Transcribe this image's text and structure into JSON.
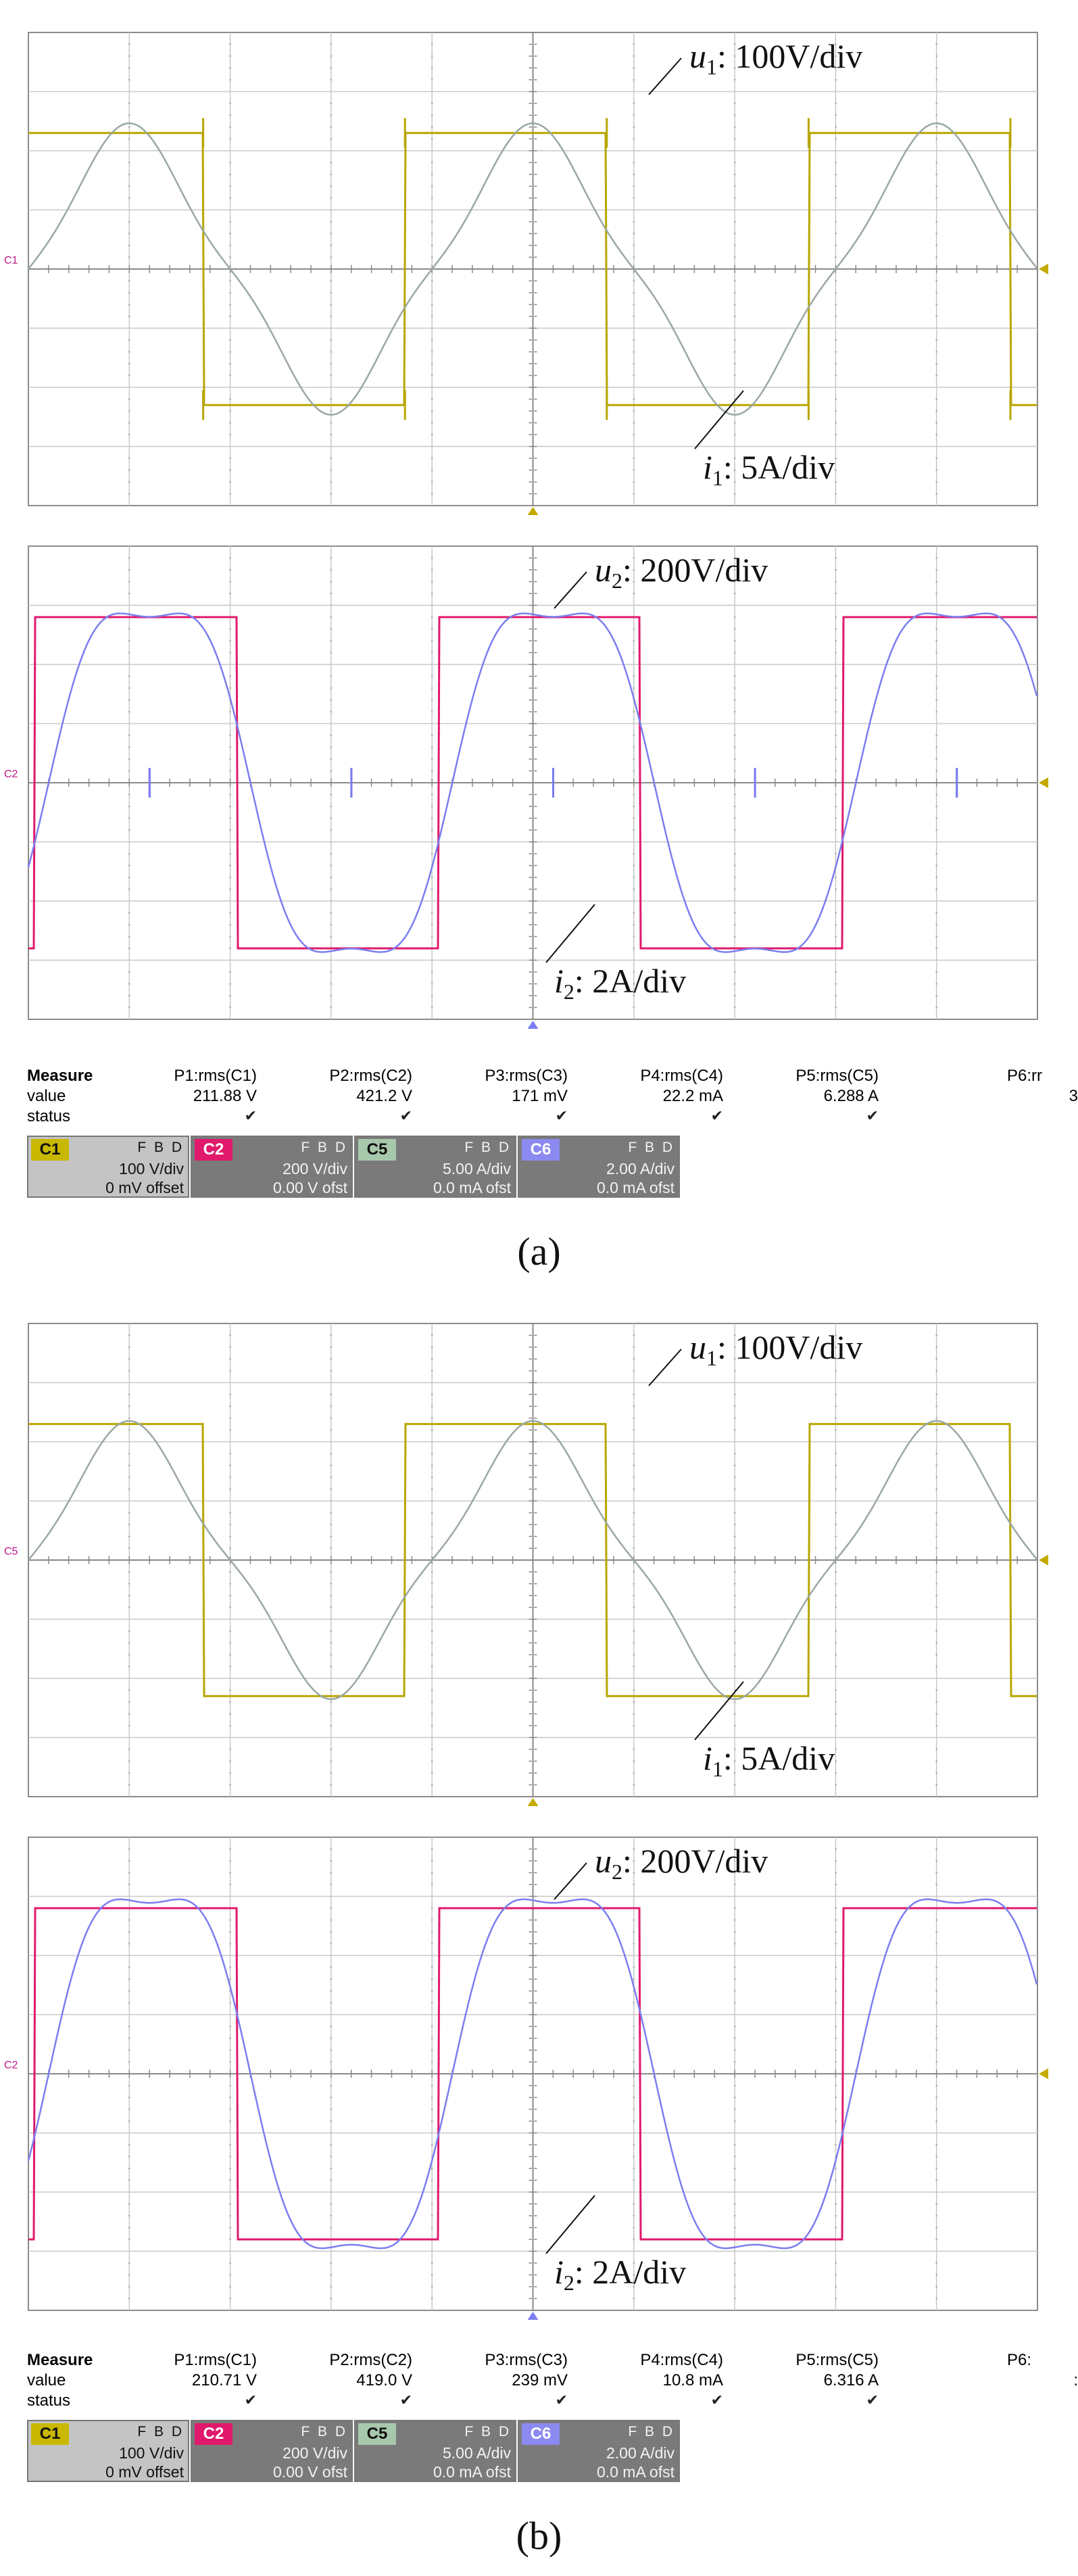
{
  "chart_data": [
    {
      "type": "line",
      "panel": "a",
      "caption": "(a)",
      "upper_grid": {
        "channel_marker": "C1",
        "series": [
          {
            "name": "u1",
            "label_main": "u",
            "label_sub": "1",
            "label_rest": ": 100V/div",
            "color": "#b7a600",
            "waveform": "square",
            "amplitude_div": 2.3,
            "duty_cycles": 2.5,
            "ringing": true
          },
          {
            "name": "i1",
            "label_main": "i",
            "label_sub": "1",
            "label_rest": ": 5A/div",
            "color": "#9aa8a4",
            "waveform": "quasi-sine",
            "amplitude_div": 2.2
          }
        ]
      },
      "lower_grid": {
        "channel_marker": "C2",
        "series": [
          {
            "name": "u2",
            "label_main": "u",
            "label_sub": "2",
            "label_rest": ": 200V/div",
            "color": "#e0196c",
            "waveform": "square",
            "amplitude_div": 2.8
          },
          {
            "name": "i2",
            "label_main": "i",
            "label_sub": "2",
            "label_rest": ": 2A/div",
            "color": "#7b7ef0",
            "waveform": "quasi-sine",
            "amplitude_div": 3.3,
            "ringing": true
          }
        ]
      },
      "measure": {
        "title": "Measure",
        "row_value": "value",
        "row_status": "status",
        "columns": [
          {
            "param": "P1:rms(C1)",
            "value": "211.88 V"
          },
          {
            "param": "P2:rms(C2)",
            "value": "421.2 V"
          },
          {
            "param": "P3:rms(C3)",
            "value": "171 mV"
          },
          {
            "param": "P4:rms(C4)",
            "value": "22.2 mA"
          },
          {
            "param": "P5:rms(C5)",
            "value": "6.288 A"
          },
          {
            "param": "P6:rr",
            "value": "3"
          }
        ]
      },
      "channels": [
        {
          "tag": "C1",
          "tag_color": "#c9b800",
          "fbd": "F B D",
          "scale": "100 V/div",
          "offset": "0 mV offset",
          "dark": false
        },
        {
          "tag": "C2",
          "tag_color": "#e0196c",
          "fbd": "F B D",
          "scale": "200 V/div",
          "offset": "0.00 V ofst",
          "dark": true
        },
        {
          "tag": "C5",
          "tag_color": "#a8c8ac",
          "fbd": "F B D",
          "scale": "5.00 A/div",
          "offset": "0.0 mA ofst",
          "dark": true
        },
        {
          "tag": "C6",
          "tag_color": "#8a8af0",
          "fbd": "F B D",
          "scale": "2.00 A/div",
          "offset": "0.0 mA ofst",
          "dark": true
        }
      ]
    },
    {
      "type": "line",
      "panel": "b",
      "caption": "(b)",
      "upper_grid": {
        "channel_marker": "C5",
        "series": [
          {
            "name": "u1",
            "label_main": "u",
            "label_sub": "1",
            "label_rest": ": 100V/div",
            "color": "#b7a600",
            "waveform": "square",
            "amplitude_div": 2.3,
            "ringing": false
          },
          {
            "name": "i1",
            "label_main": "i",
            "label_sub": "1",
            "label_rest": ": 5A/div",
            "color": "#9aa8a4",
            "waveform": "quasi-sine",
            "amplitude_div": 2.1
          }
        ]
      },
      "lower_grid": {
        "channel_marker": "C2",
        "series": [
          {
            "name": "u2",
            "label_main": "u",
            "label_sub": "2",
            "label_rest": ": 200V/div",
            "color": "#e0196c",
            "waveform": "square",
            "amplitude_div": 2.8
          },
          {
            "name": "i2",
            "label_main": "i",
            "label_sub": "2",
            "label_rest": ": 2A/div",
            "color": "#7b7ef0",
            "waveform": "quasi-sine",
            "amplitude_div": 3.4,
            "ringing": false
          }
        ]
      },
      "measure": {
        "title": "Measure",
        "row_value": "value",
        "row_status": "status",
        "columns": [
          {
            "param": "P1:rms(C1)",
            "value": "210.71 V"
          },
          {
            "param": "P2:rms(C2)",
            "value": "419.0 V"
          },
          {
            "param": "P3:rms(C3)",
            "value": "239 mV"
          },
          {
            "param": "P4:rms(C4)",
            "value": "10.8 mA"
          },
          {
            "param": "P5:rms(C5)",
            "value": "6.316 A"
          },
          {
            "param": "P6:",
            "value": ":"
          }
        ]
      },
      "channels": [
        {
          "tag": "C1",
          "tag_color": "#c9b800",
          "fbd": "F B D",
          "scale": "100 V/div",
          "offset": "0 mV offset",
          "dark": false
        },
        {
          "tag": "C2",
          "tag_color": "#e0196c",
          "fbd": "F B D",
          "scale": "200 V/div",
          "offset": "0.00 V ofst",
          "dark": true
        },
        {
          "tag": "C5",
          "tag_color": "#a8c8ac",
          "fbd": "F B D",
          "scale": "5.00 A/div",
          "offset": "0.0 mA ofst",
          "dark": true
        },
        {
          "tag": "C6",
          "tag_color": "#8a8af0",
          "fbd": "F B D",
          "scale": "2.00 A/div",
          "offset": "0.0 mA ofst",
          "dark": true
        }
      ]
    }
  ]
}
